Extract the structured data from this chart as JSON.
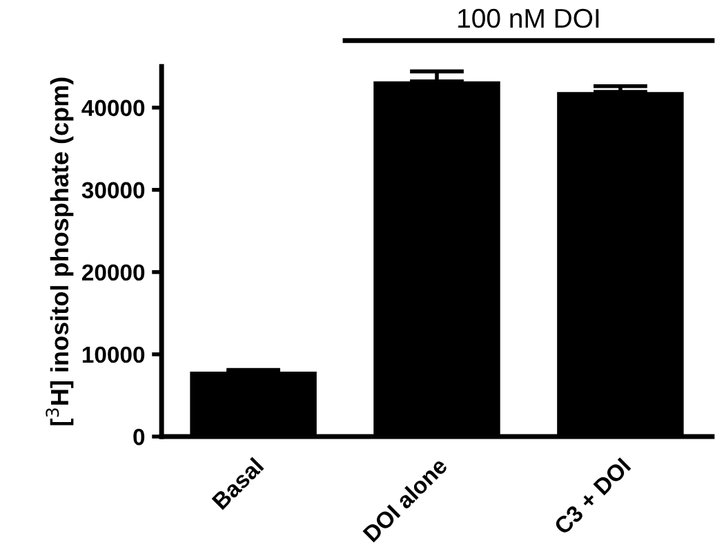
{
  "chart_data": {
    "type": "bar",
    "ylabel": "[$^{3}$H] inositol phosphate (cpm)",
    "categories": [
      "Basal",
      "DOI alone",
      "C3 + DOI"
    ],
    "values": [
      7900,
      43200,
      41900
    ],
    "errors": [
      200,
      1200,
      700
    ],
    "color": "#000000",
    "ylim": [
      0,
      45000
    ],
    "yticks": [
      0,
      10000,
      20000,
      30000,
      40000
    ],
    "annotations": [
      "100 nM DOI"
    ],
    "grid": false
  }
}
